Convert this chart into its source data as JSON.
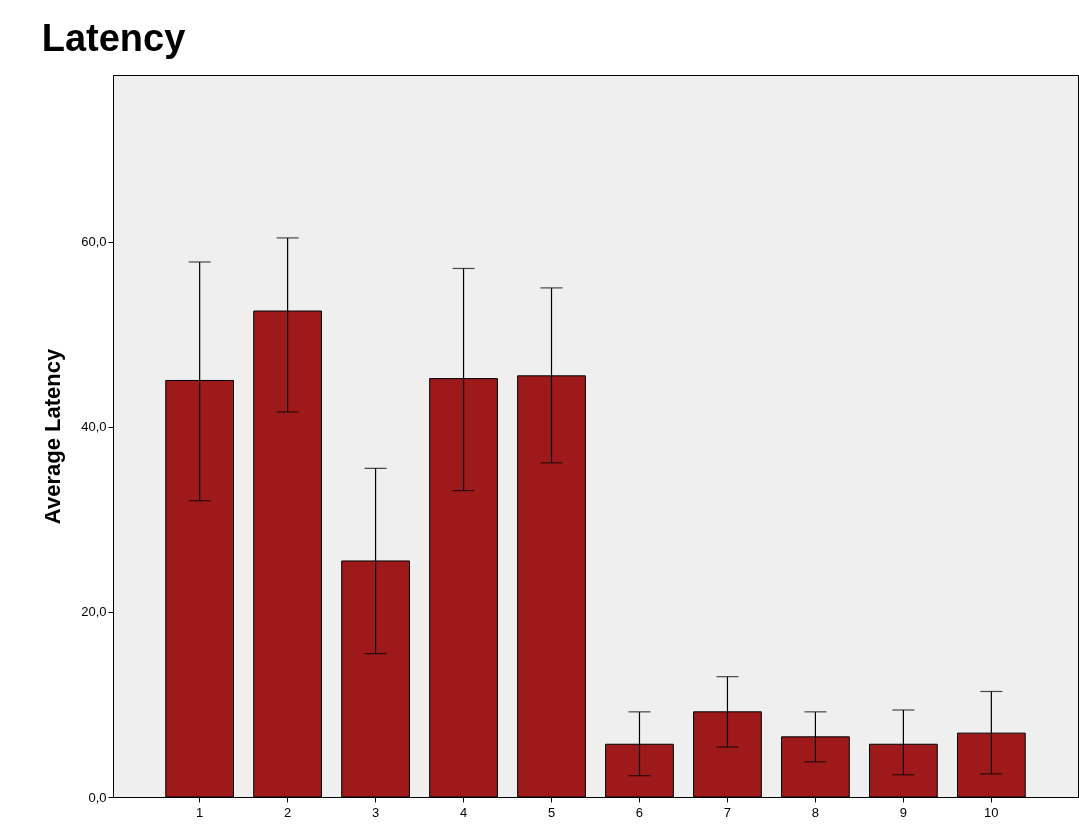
{
  "chart_data": {
    "type": "bar",
    "title": "Latency",
    "ylabel": "Average Latency",
    "categories": [
      "1",
      "2",
      "3",
      "4",
      "5",
      "6",
      "7",
      "8",
      "9",
      "10"
    ],
    "values": [
      45.0,
      52.5,
      25.5,
      45.2,
      45.5,
      5.7,
      9.2,
      6.5,
      5.7,
      6.9
    ],
    "errors": [
      [
        32.0,
        57.8
      ],
      [
        41.6,
        60.4
      ],
      [
        15.5,
        35.5
      ],
      [
        33.1,
        57.1
      ],
      [
        36.1,
        55.0
      ],
      [
        2.3,
        9.2
      ],
      [
        5.4,
        13.0
      ],
      [
        3.8,
        9.2
      ],
      [
        2.4,
        9.4
      ],
      [
        2.5,
        11.4
      ]
    ],
    "color": "#9e1a1a",
    "ylim": [
      0,
      78
    ],
    "yticks": [
      {
        "value": 0,
        "label": "0,0"
      },
      {
        "value": 20,
        "label": "20,0"
      },
      {
        "value": 40,
        "label": "40,0"
      },
      {
        "value": 60,
        "label": "60,0"
      }
    ],
    "grid": false
  }
}
